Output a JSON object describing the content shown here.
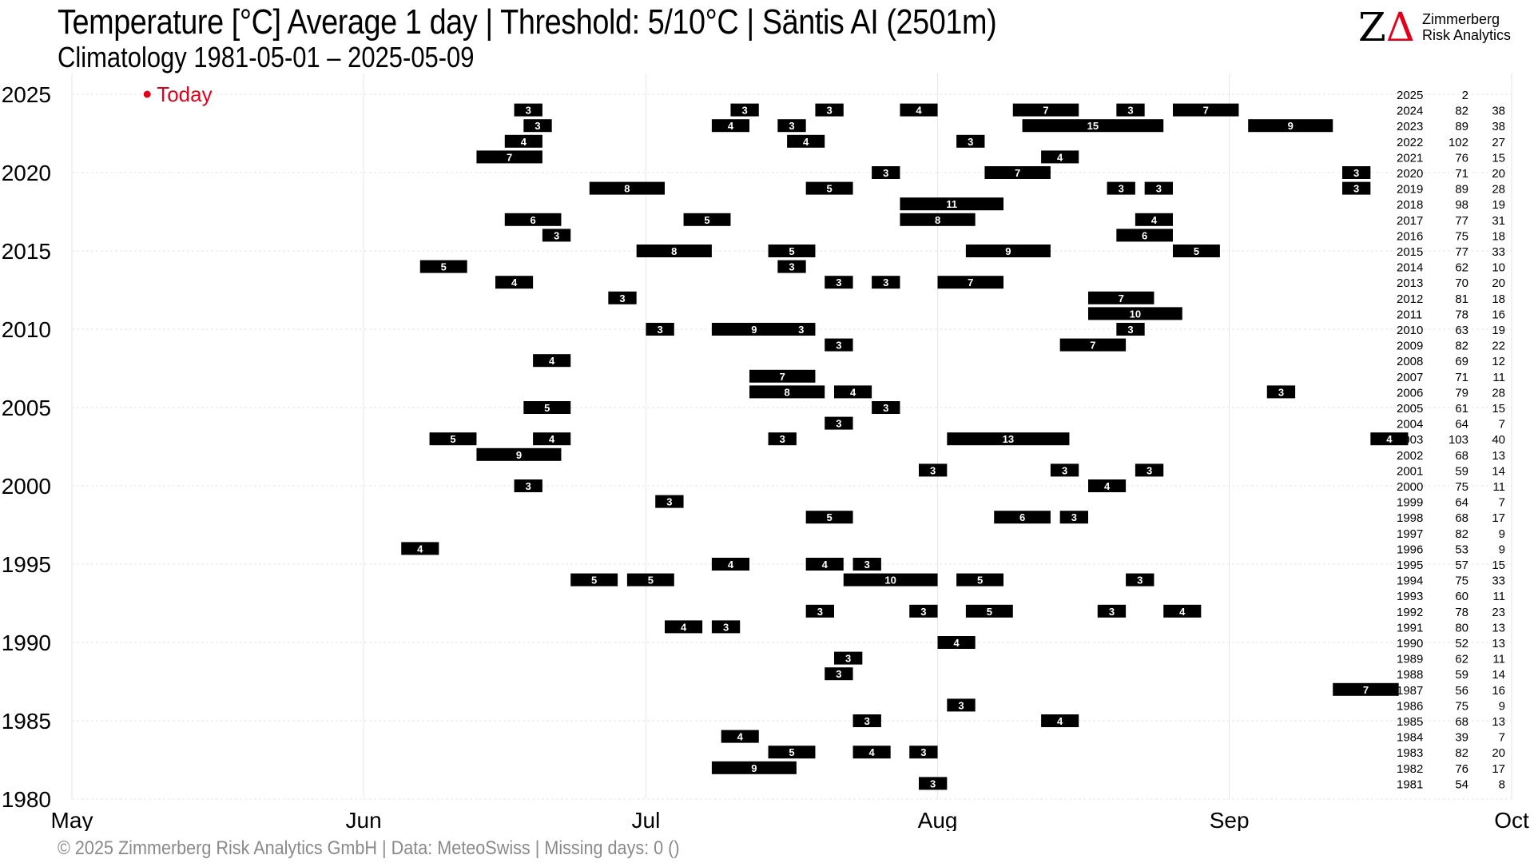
{
  "header": {
    "title": "Temperature [°C] Average 1 day | Threshold: 5/10°C | Säntis  AI (2501m)",
    "subtitle": "Climatology 1981-05-01 – 2025-05-09"
  },
  "logo": {
    "mark_z": "Z",
    "mark_a": "Δ",
    "line1": "Zimmerberg",
    "line2": "Risk Analytics"
  },
  "caption": "©  2025 Zimmerberg Risk Analytics GmbH | Data: MeteoSwiss | Missing days: 0 ()",
  "colors": {
    "strong_bar": "#000000",
    "weak_bar": "#c8c8c8",
    "grid": "#e6e6e6",
    "today": "#e3001b",
    "axis_text": "#000000"
  },
  "chart_data": {
    "type": "timeline",
    "xlabel": "",
    "ylabel": "",
    "x_ticks": [
      "May",
      "Jun",
      "Jul",
      "Aug",
      "Sep",
      "Oct"
    ],
    "y_ticks": [
      1980,
      1985,
      1990,
      1995,
      2000,
      2005,
      2010,
      2015,
      2020,
      2025
    ],
    "xlim": [
      "05-01",
      "10-01"
    ],
    "ylim": [
      1980,
      2025
    ],
    "grid": true,
    "today_label": "Today",
    "today_date": "2025-05-09",
    "years": [
      2025,
      2024,
      2023,
      2022,
      2021,
      2020,
      2019,
      2018,
      2017,
      2016,
      2015,
      2014,
      2013,
      2012,
      2011,
      2010,
      2009,
      2008,
      2007,
      2006,
      2005,
      2004,
      2003,
      2002,
      2001,
      2000,
      1999,
      1998,
      1997,
      1996,
      1995,
      1994,
      1993,
      1992,
      1991,
      1990,
      1989,
      1988,
      1987,
      1986,
      1985,
      1984,
      1983,
      1982,
      1981
    ],
    "days_above_5": [
      2,
      82,
      89,
      102,
      76,
      71,
      89,
      98,
      77,
      75,
      77,
      62,
      70,
      81,
      78,
      63,
      82,
      69,
      71,
      79,
      61,
      64,
      103,
      68,
      59,
      75,
      64,
      68,
      82,
      53,
      57,
      75,
      60,
      78,
      80,
      52,
      62,
      59,
      56,
      75,
      68,
      39,
      82,
      76,
      54
    ],
    "days_above_10": [
      null,
      38,
      38,
      27,
      15,
      20,
      28,
      19,
      31,
      18,
      33,
      10,
      20,
      18,
      16,
      19,
      22,
      12,
      11,
      28,
      15,
      7,
      40,
      13,
      14,
      11,
      7,
      17,
      9,
      9,
      15,
      33,
      11,
      23,
      13,
      13,
      11,
      14,
      16,
      9,
      13,
      7,
      20,
      17,
      8
    ],
    "strong_spells": [
      {
        "year": 2024,
        "start": "06-17",
        "days": 3
      },
      {
        "year": 2024,
        "start": "07-10",
        "days": 3
      },
      {
        "year": 2024,
        "start": "07-19",
        "days": 3
      },
      {
        "year": 2024,
        "start": "07-28",
        "days": 4
      },
      {
        "year": 2024,
        "start": "08-09",
        "days": 7
      },
      {
        "year": 2024,
        "start": "08-20",
        "days": 3
      },
      {
        "year": 2024,
        "start": "08-26",
        "days": 7
      },
      {
        "year": 2023,
        "start": "06-18",
        "days": 3
      },
      {
        "year": 2023,
        "start": "07-08",
        "days": 4
      },
      {
        "year": 2023,
        "start": "07-15",
        "days": 3
      },
      {
        "year": 2023,
        "start": "08-10",
        "days": 15
      },
      {
        "year": 2023,
        "start": "09-03",
        "days": 9
      },
      {
        "year": 2022,
        "start": "06-16",
        "days": 4
      },
      {
        "year": 2022,
        "start": "07-16",
        "days": 4
      },
      {
        "year": 2022,
        "start": "08-03",
        "days": 3
      },
      {
        "year": 2021,
        "start": "06-13",
        "days": 7
      },
      {
        "year": 2021,
        "start": "08-12",
        "days": 4
      },
      {
        "year": 2020,
        "start": "07-25",
        "days": 3
      },
      {
        "year": 2020,
        "start": "08-06",
        "days": 7
      },
      {
        "year": 2020,
        "start": "09-13",
        "days": 3
      },
      {
        "year": 2019,
        "start": "06-25",
        "days": 8
      },
      {
        "year": 2019,
        "start": "07-18",
        "days": 5
      },
      {
        "year": 2019,
        "start": "08-19",
        "days": 3
      },
      {
        "year": 2019,
        "start": "08-23",
        "days": 3
      },
      {
        "year": 2019,
        "start": "09-13",
        "days": 3
      },
      {
        "year": 2018,
        "start": "07-28",
        "days": 11
      },
      {
        "year": 2017,
        "start": "06-16",
        "days": 6
      },
      {
        "year": 2017,
        "start": "07-05",
        "days": 5
      },
      {
        "year": 2017,
        "start": "07-28",
        "days": 8
      },
      {
        "year": 2017,
        "start": "08-22",
        "days": 4
      },
      {
        "year": 2016,
        "start": "06-20",
        "days": 3
      },
      {
        "year": 2016,
        "start": "08-20",
        "days": 6
      },
      {
        "year": 2015,
        "start": "06-30",
        "days": 8
      },
      {
        "year": 2015,
        "start": "07-14",
        "days": 5
      },
      {
        "year": 2015,
        "start": "08-04",
        "days": 9
      },
      {
        "year": 2015,
        "start": "08-26",
        "days": 5
      },
      {
        "year": 2014,
        "start": "06-07",
        "days": 5
      },
      {
        "year": 2014,
        "start": "07-15",
        "days": 3
      },
      {
        "year": 2013,
        "start": "06-15",
        "days": 4
      },
      {
        "year": 2013,
        "start": "07-20",
        "days": 3
      },
      {
        "year": 2013,
        "start": "07-25",
        "days": 3
      },
      {
        "year": 2013,
        "start": "08-01",
        "days": 7
      },
      {
        "year": 2012,
        "start": "06-27",
        "days": 3
      },
      {
        "year": 2012,
        "start": "08-17",
        "days": 7
      },
      {
        "year": 2011,
        "start": "08-17",
        "days": 10
      },
      {
        "year": 2010,
        "start": "07-01",
        "days": 3
      },
      {
        "year": 2010,
        "start": "07-08",
        "days": 9
      },
      {
        "year": 2010,
        "start": "07-16",
        "days": 3
      },
      {
        "year": 2010,
        "start": "08-20",
        "days": 3
      },
      {
        "year": 2009,
        "start": "07-20",
        "days": 3
      },
      {
        "year": 2009,
        "start": "08-14",
        "days": 7
      },
      {
        "year": 2008,
        "start": "06-19",
        "days": 4
      },
      {
        "year": 2007,
        "start": "07-12",
        "days": 7
      },
      {
        "year": 2006,
        "start": "07-12",
        "days": 8
      },
      {
        "year": 2006,
        "start": "07-21",
        "days": 4
      },
      {
        "year": 2006,
        "start": "09-05",
        "days": 3
      },
      {
        "year": 2005,
        "start": "06-18",
        "days": 5
      },
      {
        "year": 2005,
        "start": "07-25",
        "days": 3
      },
      {
        "year": 2004,
        "start": "07-20",
        "days": 3
      },
      {
        "year": 2003,
        "start": "06-08",
        "days": 5
      },
      {
        "year": 2003,
        "start": "06-19",
        "days": 4
      },
      {
        "year": 2003,
        "start": "07-14",
        "days": 3
      },
      {
        "year": 2003,
        "start": "08-02",
        "days": 13
      },
      {
        "year": 2003,
        "start": "09-16",
        "days": 4
      },
      {
        "year": 2002,
        "start": "06-13",
        "days": 9
      },
      {
        "year": 2001,
        "start": "07-30",
        "days": 3
      },
      {
        "year": 2001,
        "start": "08-13",
        "days": 3
      },
      {
        "year": 2001,
        "start": "08-22",
        "days": 3
      },
      {
        "year": 2000,
        "start": "06-17",
        "days": 3
      },
      {
        "year": 2000,
        "start": "08-17",
        "days": 4
      },
      {
        "year": 1999,
        "start": "07-02",
        "days": 3
      },
      {
        "year": 1998,
        "start": "07-18",
        "days": 5
      },
      {
        "year": 1998,
        "start": "08-07",
        "days": 6
      },
      {
        "year": 1998,
        "start": "08-14",
        "days": 3
      },
      {
        "year": 1996,
        "start": "06-05",
        "days": 4
      },
      {
        "year": 1995,
        "start": "07-08",
        "days": 4
      },
      {
        "year": 1995,
        "start": "07-18",
        "days": 4
      },
      {
        "year": 1995,
        "start": "07-23",
        "days": 3
      },
      {
        "year": 1994,
        "start": "06-23",
        "days": 5
      },
      {
        "year": 1994,
        "start": "06-29",
        "days": 5
      },
      {
        "year": 1994,
        "start": "07-22",
        "days": 10
      },
      {
        "year": 1994,
        "start": "08-03",
        "days": 5
      },
      {
        "year": 1994,
        "start": "08-21",
        "days": 3
      },
      {
        "year": 1992,
        "start": "07-18",
        "days": 3
      },
      {
        "year": 1992,
        "start": "07-29",
        "days": 3
      },
      {
        "year": 1992,
        "start": "08-04",
        "days": 5
      },
      {
        "year": 1992,
        "start": "08-18",
        "days": 3
      },
      {
        "year": 1992,
        "start": "08-25",
        "days": 4
      },
      {
        "year": 1991,
        "start": "07-03",
        "days": 4
      },
      {
        "year": 1991,
        "start": "07-08",
        "days": 3
      },
      {
        "year": 1990,
        "start": "08-01",
        "days": 4
      },
      {
        "year": 1989,
        "start": "07-21",
        "days": 3
      },
      {
        "year": 1988,
        "start": "07-20",
        "days": 3
      },
      {
        "year": 1987,
        "start": "09-12",
        "days": 7
      },
      {
        "year": 1986,
        "start": "08-02",
        "days": 3
      },
      {
        "year": 1985,
        "start": "07-23",
        "days": 3
      },
      {
        "year": 1985,
        "start": "08-12",
        "days": 4
      },
      {
        "year": 1984,
        "start": "07-09",
        "days": 4
      },
      {
        "year": 1983,
        "start": "07-14",
        "days": 5
      },
      {
        "year": 1983,
        "start": "07-23",
        "days": 4
      },
      {
        "year": 1983,
        "start": "07-29",
        "days": 3
      },
      {
        "year": 1982,
        "start": "07-08",
        "days": 9
      },
      {
        "year": 1981,
        "start": "07-30",
        "days": 3
      }
    ]
  }
}
